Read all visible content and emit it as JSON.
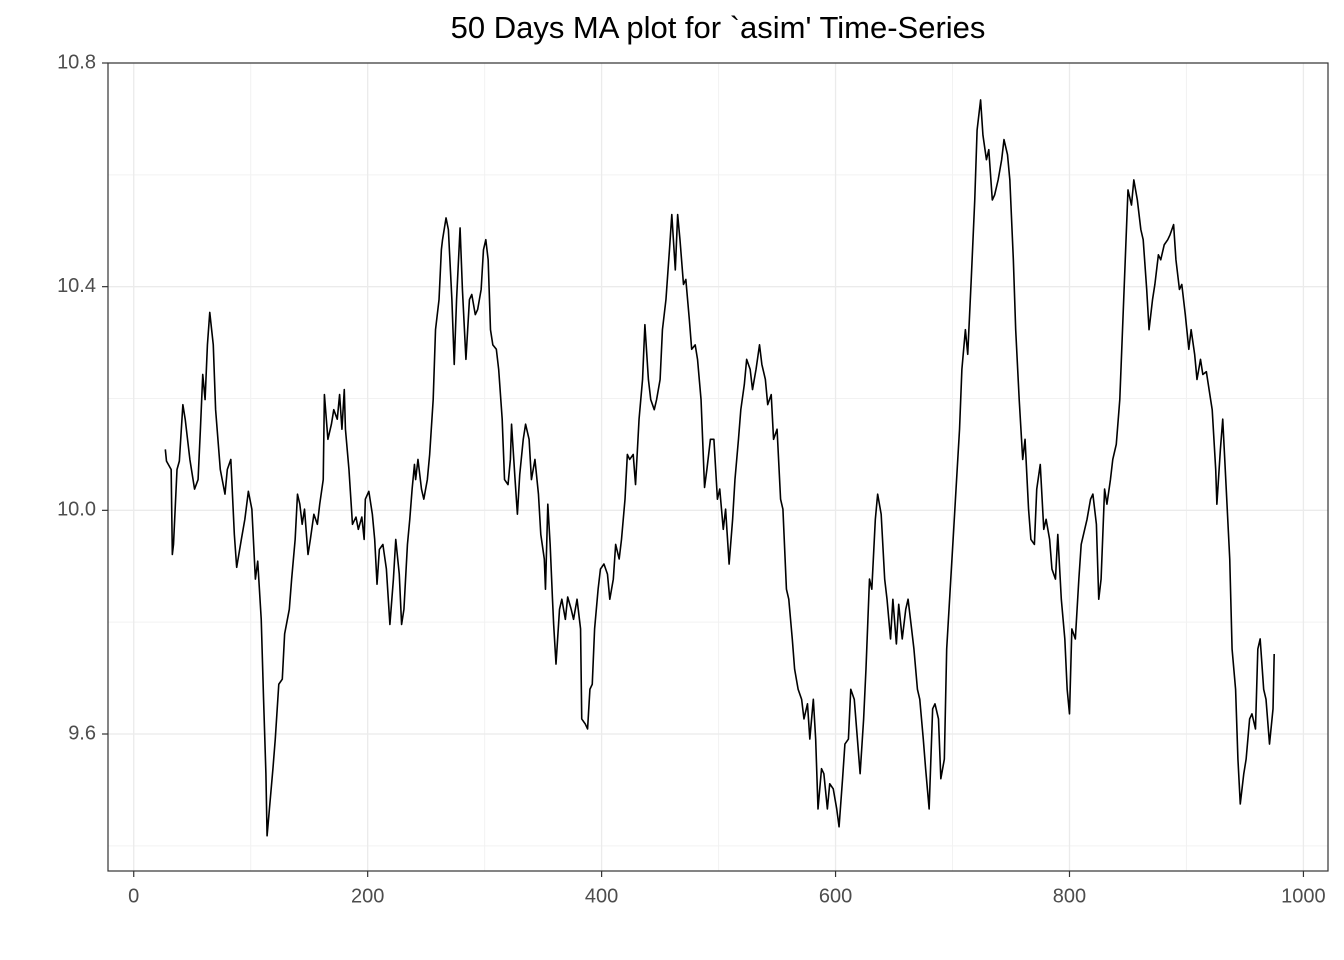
{
  "chart_data": {
    "type": "line",
    "title": "50 Days MA plot for `asim' Time-Series",
    "x": [
      27,
      28,
      32,
      33,
      34,
      37,
      39,
      42,
      44,
      48,
      52,
      55,
      57,
      59,
      61,
      63,
      65,
      68,
      70,
      74,
      78,
      80,
      83,
      86,
      88,
      92,
      95,
      98,
      101,
      104,
      106,
      109,
      111,
      113,
      114,
      116,
      119,
      121,
      124,
      127,
      129,
      133,
      135,
      138,
      140,
      142,
      144,
      146,
      149,
      151,
      154,
      157,
      159,
      162,
      163,
      166,
      169,
      171,
      174,
      176,
      178,
      180,
      181,
      184,
      187,
      190,
      192,
      195,
      197,
      198,
      201,
      204,
      206,
      208,
      210,
      213,
      216,
      219,
      222,
      224,
      227,
      229,
      231,
      234,
      236,
      238,
      240,
      241,
      243,
      246,
      248,
      251,
      253,
      256,
      258,
      261,
      263,
      264,
      267,
      269,
      272,
      274,
      276,
      279,
      281,
      284,
      287,
      289,
      292,
      294,
      297,
      299,
      301,
      303,
      305,
      307,
      310,
      312,
      315,
      317,
      320,
      322,
      323,
      326,
      328,
      330,
      333,
      335,
      338,
      340,
      343,
      346,
      348,
      351,
      352,
      354,
      356,
      358,
      359,
      361,
      364,
      366,
      369,
      371,
      374,
      376,
      379,
      382,
      383,
      386,
      388,
      390,
      392,
      394,
      397,
      399,
      402,
      405,
      407,
      410,
      412,
      415,
      417,
      420,
      422,
      424,
      427,
      429,
      432,
      435,
      437,
      440,
      442,
      445,
      447,
      450,
      452,
      455,
      458,
      460,
      463,
      465,
      467,
      470,
      472,
      475,
      477,
      480,
      482,
      485,
      488,
      490,
      493,
      496,
      499,
      501,
      504,
      506,
      509,
      512,
      514,
      517,
      519,
      522,
      524,
      527,
      529,
      532,
      535,
      537,
      540,
      542,
      545,
      547,
      550,
      553,
      555,
      558,
      560,
      563,
      565,
      568,
      571,
      573,
      576,
      578,
      581,
      583,
      585,
      588,
      590,
      593,
      595,
      598,
      601,
      603,
      606,
      608,
      611,
      613,
      616,
      618,
      621,
      624,
      626,
      629,
      631,
      634,
      636,
      639,
      642,
      644,
      647,
      649,
      652,
      654,
      657,
      660,
      662,
      665,
      667,
      670,
      672,
      675,
      677,
      680,
      683,
      685,
      688,
      690,
      693,
      695,
      698,
      701,
      703,
      706,
      708,
      711,
      713,
      716,
      719,
      721,
      724,
      726,
      729,
      731,
      734,
      736,
      739,
      742,
      744,
      747,
      749,
      752,
      754,
      757,
      760,
      762,
      765,
      767,
      770,
      772,
      775,
      778,
      780,
      783,
      785,
      788,
      790,
      793,
      796,
      798,
      800,
      802,
      805,
      808,
      810,
      813,
      815,
      818,
      820,
      823,
      825,
      827,
      830,
      832,
      835,
      837,
      840,
      843,
      845,
      848,
      850,
      853,
      855,
      858,
      861,
      863,
      866,
      868,
      871,
      873,
      876,
      878,
      881,
      884,
      886,
      889,
      891,
      894,
      896,
      899,
      902,
      904,
      907,
      909,
      912,
      914,
      917,
      920,
      922,
      925,
      926,
      929,
      931,
      934,
      937,
      939,
      942,
      944,
      946,
      949,
      951,
      954,
      956,
      959,
      961,
      963,
      966,
      968,
      971,
      974,
      975
    ],
    "values": [
      10.109,
      10.088,
      10.073,
      9.921,
      9.939,
      10.073,
      10.088,
      10.189,
      10.163,
      10.091,
      10.038,
      10.055,
      10.145,
      10.243,
      10.198,
      10.296,
      10.354,
      10.296,
      10.18,
      10.073,
      10.029,
      10.073,
      10.091,
      9.957,
      9.898,
      9.948,
      9.984,
      10.034,
      10.002,
      9.877,
      9.909,
      9.805,
      9.662,
      9.529,
      9.418,
      9.466,
      9.538,
      9.591,
      9.689,
      9.698,
      9.779,
      9.823,
      9.877,
      9.948,
      10.029,
      10.011,
      9.975,
      10.002,
      9.921,
      9.948,
      9.993,
      9.975,
      10.011,
      10.055,
      10.207,
      10.127,
      10.154,
      10.18,
      10.163,
      10.207,
      10.145,
      10.216,
      10.145,
      10.073,
      9.975,
      9.988,
      9.966,
      9.988,
      9.948,
      10.02,
      10.034,
      9.993,
      9.948,
      9.868,
      9.93,
      9.939,
      9.895,
      9.796,
      9.877,
      9.948,
      9.886,
      9.796,
      9.823,
      9.939,
      9.984,
      10.038,
      10.082,
      10.055,
      10.091,
      10.038,
      10.02,
      10.055,
      10.1,
      10.198,
      10.323,
      10.377,
      10.466,
      10.484,
      10.523,
      10.502,
      10.377,
      10.261,
      10.377,
      10.505,
      10.395,
      10.27,
      10.377,
      10.386,
      10.35,
      10.359,
      10.395,
      10.466,
      10.484,
      10.448,
      10.323,
      10.296,
      10.288,
      10.252,
      10.163,
      10.055,
      10.046,
      10.091,
      10.154,
      10.055,
      9.993,
      10.064,
      10.127,
      10.154,
      10.127,
      10.055,
      10.091,
      10.029,
      9.957,
      9.913,
      9.859,
      10.011,
      9.939,
      9.841,
      9.796,
      9.725,
      9.823,
      9.841,
      9.805,
      9.845,
      9.823,
      9.805,
      9.841,
      9.788,
      9.627,
      9.618,
      9.609,
      9.68,
      9.689,
      9.788,
      9.859,
      9.895,
      9.904,
      9.886,
      9.841,
      9.877,
      9.939,
      9.913,
      9.948,
      10.02,
      10.1,
      10.091,
      10.1,
      10.046,
      10.163,
      10.234,
      10.332,
      10.234,
      10.198,
      10.18,
      10.198,
      10.234,
      10.323,
      10.377,
      10.466,
      10.529,
      10.43,
      10.529,
      10.484,
      10.404,
      10.413,
      10.341,
      10.288,
      10.296,
      10.27,
      10.198,
      10.041,
      10.073,
      10.127,
      10.127,
      10.02,
      10.038,
      9.966,
      10.002,
      9.904,
      9.984,
      10.055,
      10.127,
      10.18,
      10.225,
      10.27,
      10.252,
      10.216,
      10.252,
      10.296,
      10.261,
      10.234,
      10.189,
      10.207,
      10.127,
      10.145,
      10.02,
      10.002,
      9.859,
      9.841,
      9.77,
      9.716,
      9.68,
      9.662,
      9.627,
      9.654,
      9.591,
      9.662,
      9.591,
      9.466,
      9.538,
      9.529,
      9.466,
      9.511,
      9.502,
      9.466,
      9.434,
      9.52,
      9.582,
      9.591,
      9.68,
      9.662,
      9.609,
      9.529,
      9.627,
      9.716,
      9.877,
      9.859,
      9.984,
      10.029,
      9.993,
      9.877,
      9.841,
      9.77,
      9.841,
      9.761,
      9.832,
      9.77,
      9.823,
      9.841,
      9.788,
      9.752,
      9.68,
      9.662,
      9.591,
      9.538,
      9.466,
      9.645,
      9.654,
      9.627,
      9.52,
      9.555,
      9.752,
      9.859,
      9.966,
      10.038,
      10.145,
      10.252,
      10.323,
      10.279,
      10.413,
      10.555,
      10.68,
      10.734,
      10.671,
      10.627,
      10.645,
      10.555,
      10.564,
      10.591,
      10.627,
      10.663,
      10.636,
      10.591,
      10.448,
      10.323,
      10.198,
      10.091,
      10.127,
      10.002,
      9.948,
      9.939,
      10.038,
      10.082,
      9.966,
      9.984,
      9.948,
      9.895,
      9.877,
      9.957,
      9.841,
      9.77,
      9.68,
      9.636,
      9.788,
      9.77,
      9.877,
      9.939,
      9.966,
      9.984,
      10.02,
      10.029,
      9.975,
      9.841,
      9.877,
      10.038,
      10.011,
      10.055,
      10.091,
      10.118,
      10.198,
      10.305,
      10.466,
      10.573,
      10.546,
      10.591,
      10.555,
      10.502,
      10.484,
      10.395,
      10.323,
      10.377,
      10.404,
      10.457,
      10.448,
      10.475,
      10.484,
      10.493,
      10.511,
      10.448,
      10.395,
      10.404,
      10.35,
      10.288,
      10.323,
      10.279,
      10.234,
      10.27,
      10.243,
      10.248,
      10.207,
      10.18,
      10.073,
      10.011,
      10.109,
      10.163,
      10.038,
      9.913,
      9.752,
      9.68,
      9.555,
      9.475,
      9.529,
      9.555,
      9.627,
      9.636,
      9.609,
      9.752,
      9.77,
      9.68,
      9.662,
      9.582,
      9.645,
      9.743
    ],
    "color": "#000000",
    "xlim": [
      -22,
      1021
    ],
    "xticks": [
      0,
      200,
      400,
      600,
      800,
      1000
    ],
    "xminor": [
      100,
      300,
      500,
      700,
      900
    ],
    "ylim": [
      9.355,
      10.8
    ],
    "yticks": [
      9.6,
      {
        "value": 10,
        "label": "10.0"
      },
      10.4,
      10.8
    ],
    "yminor": [
      9.4,
      9.8,
      10.2,
      10.6
    ],
    "grid": true
  }
}
